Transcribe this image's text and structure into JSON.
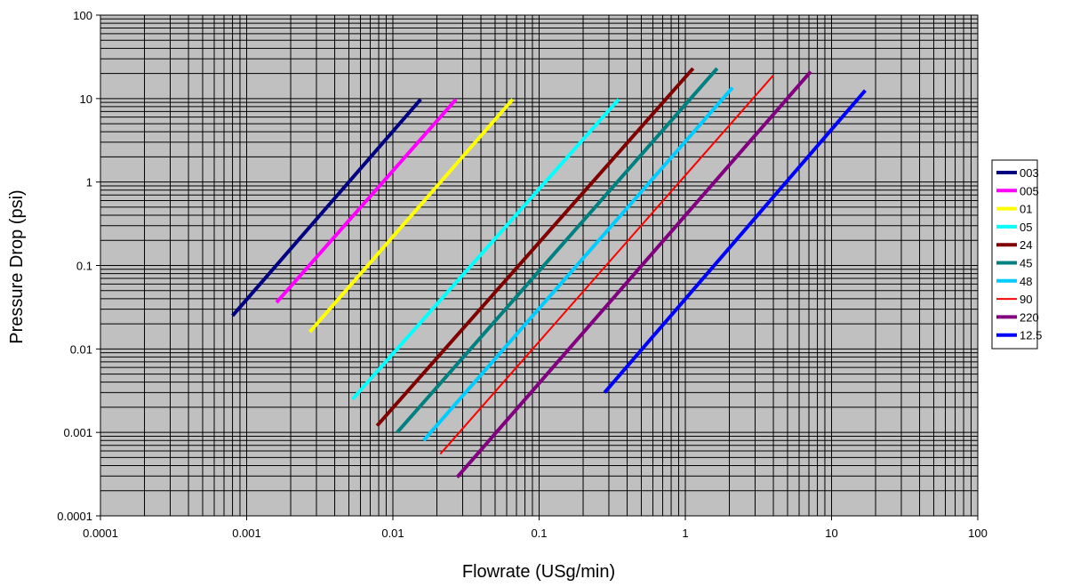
{
  "chart_data": {
    "type": "line",
    "xscale": "log",
    "yscale": "log",
    "xlabel": "Flowrate (USg/min)",
    "ylabel": "Pressure Drop (psi)",
    "xlim": [
      0.0001,
      100
    ],
    "ylim": [
      0.0001,
      100
    ],
    "x_tick_labels": [
      "0.0001",
      "0.001",
      "0.01",
      "0.1",
      "1",
      "10",
      "100"
    ],
    "y_tick_labels": [
      "0.0001",
      "0.001",
      "0.01",
      "0.1",
      "1",
      "10",
      "100"
    ],
    "grid": true,
    "plot_background": "#c0c0c0",
    "legend_position": "right",
    "series": [
      {
        "name": "003",
        "color": "#000080",
        "width": "thick",
        "x": [
          0.0008,
          0.0155
        ],
        "y": [
          0.025,
          9.8
        ]
      },
      {
        "name": "005",
        "color": "#ff00ff",
        "width": "thick",
        "x": [
          0.0016,
          0.027
        ],
        "y": [
          0.036,
          9.8
        ]
      },
      {
        "name": "01",
        "color": "#ffff00",
        "width": "thick",
        "x": [
          0.0027,
          0.066
        ],
        "y": [
          0.016,
          9.8
        ]
      },
      {
        "name": "05",
        "color": "#00ffff",
        "width": "thick",
        "x": [
          0.0053,
          0.35
        ],
        "y": [
          0.0025,
          9.8
        ]
      },
      {
        "name": "24",
        "color": "#800000",
        "width": "thick",
        "x": [
          0.0078,
          1.13
        ],
        "y": [
          0.0012,
          23
        ]
      },
      {
        "name": "45",
        "color": "#008080",
        "width": "thick",
        "x": [
          0.0107,
          1.65
        ],
        "y": [
          0.001,
          23
        ]
      },
      {
        "name": "48",
        "color": "#00ccff",
        "width": "thick",
        "x": [
          0.0162,
          2.1
        ],
        "y": [
          0.0008,
          13.5
        ]
      },
      {
        "name": "90",
        "color": "#ff0000",
        "width": "thin",
        "x": [
          0.0211,
          4.0
        ],
        "y": [
          0.00055,
          19
        ]
      },
      {
        "name": "220",
        "color": "#800080",
        "width": "thick",
        "x": [
          0.0275,
          7.2
        ],
        "y": [
          0.00029,
          21
        ]
      },
      {
        "name": "12.5",
        "color": "#0000ff",
        "width": "thick",
        "x": [
          0.28,
          17
        ],
        "y": [
          0.003,
          12.5
        ]
      }
    ]
  }
}
